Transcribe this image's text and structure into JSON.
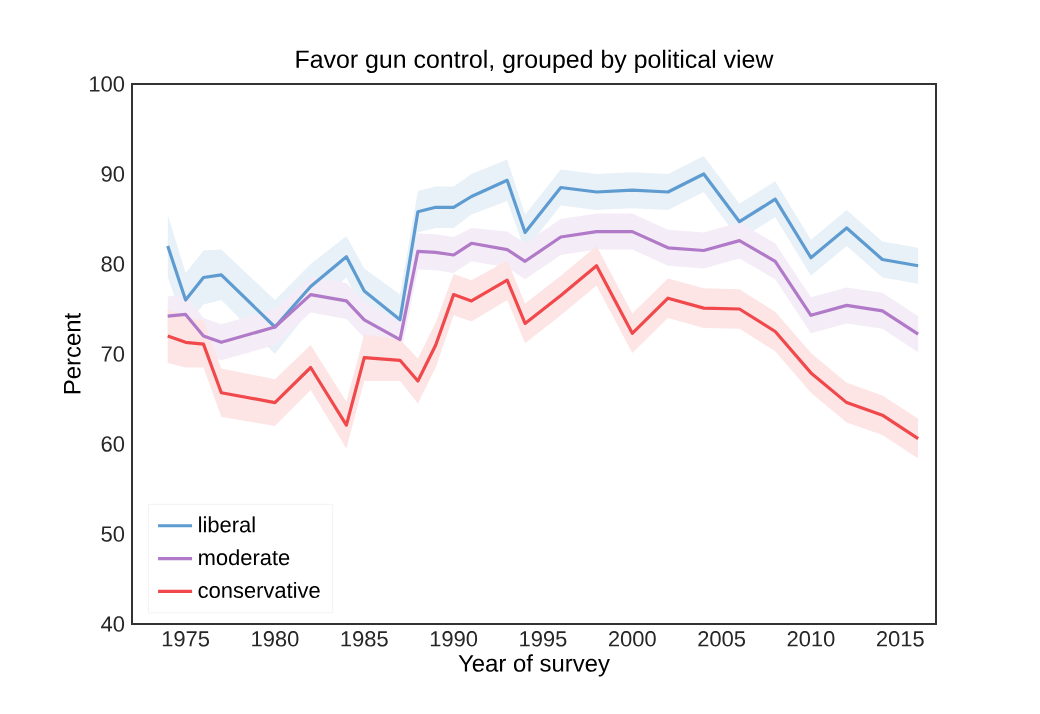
{
  "chart_data": {
    "type": "line",
    "title": "Favor gun control, grouped by political view",
    "xlabel": "Year of survey",
    "ylabel": "Percent",
    "x": [
      1974,
      1975,
      1976,
      1977,
      1980,
      1982,
      1984,
      1985,
      1987,
      1988,
      1989,
      1990,
      1991,
      1993,
      1994,
      1996,
      1998,
      2000,
      2002,
      2004,
      2006,
      2008,
      2010,
      2012,
      2014,
      2016
    ],
    "series": [
      {
        "name": "liberal",
        "color": "#5e9bd0",
        "values": [
          82,
          76,
          78.5,
          78.8,
          73,
          77.5,
          80.8,
          77,
          73.8,
          85.8,
          86.3,
          86.3,
          87.5,
          89.3,
          83.5,
          88.5,
          88,
          88.2,
          88,
          90,
          84.7,
          87.2,
          80.7,
          84,
          80.5,
          79.8
        ],
        "lower": [
          78.5,
          73,
          75.5,
          76,
          70,
          75,
          78.5,
          74.5,
          71,
          83.5,
          84,
          84,
          85.5,
          87,
          81.5,
          86.5,
          86,
          86.2,
          86,
          88,
          82.7,
          85.2,
          78.7,
          82,
          78.5,
          77.8
        ],
        "upper": [
          85.5,
          79,
          81.5,
          81.6,
          76,
          80,
          83.1,
          79.5,
          76.6,
          88.1,
          88.6,
          88.6,
          90,
          91.6,
          85.5,
          90.5,
          90,
          90.2,
          90,
          92,
          86.7,
          89.2,
          82.7,
          86,
          82.5,
          81.8
        ]
      },
      {
        "name": "moderate",
        "color": "#b07ac8",
        "values": [
          74.2,
          74.4,
          72,
          71.3,
          73,
          76.6,
          75.9,
          73.8,
          71.6,
          81.4,
          81.3,
          81,
          82.3,
          81.6,
          80.3,
          83,
          83.6,
          83.6,
          81.8,
          81.5,
          82.6,
          80.3,
          74.3,
          75.4,
          74.8,
          72.2
        ],
        "lower": [
          72,
          72.2,
          70,
          69.3,
          71,
          74.6,
          73.9,
          71.8,
          69.6,
          79.4,
          79.3,
          79,
          80.3,
          79.6,
          78.3,
          81,
          81.6,
          81.6,
          79.8,
          79.5,
          80.6,
          78.3,
          72.3,
          73.4,
          72.8,
          70.2
        ],
        "upper": [
          76.4,
          76.6,
          74,
          73.3,
          75,
          78.6,
          77.9,
          75.8,
          73.6,
          83.4,
          83.3,
          83,
          84,
          83.6,
          82.3,
          85,
          85.6,
          85.6,
          83.8,
          83.5,
          84.6,
          82.3,
          76.3,
          77.4,
          76.8,
          74.2
        ]
      },
      {
        "name": "conservative",
        "color": "#f0484b",
        "values": [
          72,
          71.3,
          71.1,
          65.7,
          64.6,
          68.5,
          62.1,
          69.6,
          69.3,
          67,
          71,
          76.6,
          75.9,
          78.2,
          73.4,
          76.5,
          79.8,
          72.3,
          76.2,
          75.1,
          75,
          72.5,
          67.9,
          64.6,
          63.2,
          60.6
        ],
        "lower": [
          69,
          68.5,
          68.5,
          63,
          62,
          66,
          59.5,
          67,
          67,
          64.5,
          68.5,
          74.3,
          73.6,
          76,
          71.2,
          74.3,
          77.6,
          70.1,
          74,
          72.9,
          72.8,
          70.3,
          65.7,
          62.4,
          61,
          58.4
        ],
        "upper": [
          75,
          74.1,
          73.7,
          68.4,
          67.2,
          71,
          64.7,
          72.2,
          71.6,
          69.5,
          73.5,
          78.9,
          78.2,
          80.4,
          75.6,
          78.7,
          82,
          74.5,
          78.4,
          77.3,
          77.2,
          74.7,
          70.1,
          66.8,
          65.4,
          62.8
        ]
      }
    ],
    "xlim": [
      1972,
      2017
    ],
    "ylim": [
      40,
      100
    ],
    "xticks": [
      1975,
      1980,
      1985,
      1990,
      1995,
      2000,
      2005,
      2010,
      2015
    ],
    "yticks": [
      40,
      50,
      60,
      70,
      80,
      90,
      100
    ],
    "grid": false,
    "legend": "bottom left",
    "marker": "none",
    "line_style": "solid"
  }
}
